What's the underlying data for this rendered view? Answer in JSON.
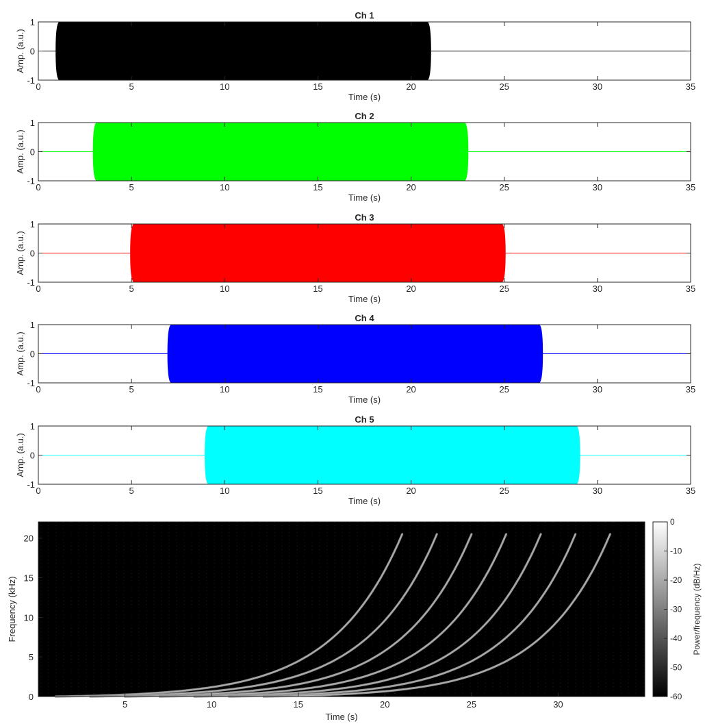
{
  "chart_data": [
    {
      "type": "line",
      "title": "Ch 1",
      "xlabel": "Time (s)",
      "ylabel": "Amp. (a.u.)",
      "xlim": [
        0,
        35
      ],
      "ylim": [
        -1,
        1
      ],
      "xticks": [
        "0",
        "5",
        "10",
        "15",
        "20",
        "25",
        "30",
        "35"
      ],
      "yticks": [
        "-1",
        "0",
        "1"
      ],
      "color": "#000000",
      "signal_start": 1,
      "signal_end": 21,
      "amplitude": 1
    },
    {
      "type": "line",
      "title": "Ch 2",
      "xlabel": "Time (s)",
      "ylabel": "Amp. (a.u.)",
      "xlim": [
        0,
        35
      ],
      "ylim": [
        -1,
        1
      ],
      "xticks": [
        "0",
        "5",
        "10",
        "15",
        "20",
        "25",
        "30",
        "35"
      ],
      "yticks": [
        "-1",
        "0",
        "1"
      ],
      "color": "#00ff00",
      "signal_start": 3,
      "signal_end": 23,
      "amplitude": 1
    },
    {
      "type": "line",
      "title": "Ch 3",
      "xlabel": "Time (s)",
      "ylabel": "Amp. (a.u.)",
      "xlim": [
        0,
        35
      ],
      "ylim": [
        -1,
        1
      ],
      "xticks": [
        "0",
        "5",
        "10",
        "15",
        "20",
        "25",
        "30",
        "35"
      ],
      "yticks": [
        "-1",
        "0",
        "1"
      ],
      "color": "#ff0000",
      "signal_start": 5,
      "signal_end": 25,
      "amplitude": 1
    },
    {
      "type": "line",
      "title": "Ch 4",
      "xlabel": "Time (s)",
      "ylabel": "Amp. (a.u.)",
      "xlim": [
        0,
        35
      ],
      "ylim": [
        -1,
        1
      ],
      "xticks": [
        "0",
        "5",
        "10",
        "15",
        "20",
        "25",
        "30",
        "35"
      ],
      "yticks": [
        "-1",
        "0",
        "1"
      ],
      "color": "#0000ff",
      "signal_start": 7,
      "signal_end": 27,
      "amplitude": 1
    },
    {
      "type": "line",
      "title": "Ch 5",
      "xlabel": "Time (s)",
      "ylabel": "Amp. (a.u.)",
      "xlim": [
        0,
        35
      ],
      "ylim": [
        -1,
        1
      ],
      "xticks": [
        "0",
        "5",
        "10",
        "15",
        "20",
        "25",
        "30",
        "35"
      ],
      "yticks": [
        "-1",
        "0",
        "1"
      ],
      "color": "#00ffff",
      "signal_start": 9,
      "signal_end": 29,
      "amplitude": 1
    },
    {
      "type": "heatmap",
      "title": "",
      "xlabel": "Time (s)",
      "ylabel": "Frequency (kHz)",
      "xlim": [
        0,
        35
      ],
      "ylim": [
        0,
        22.05
      ],
      "xticks": [
        "5",
        "10",
        "15",
        "20",
        "25",
        "30"
      ],
      "yticks": [
        "0",
        "5",
        "10",
        "15",
        "20"
      ],
      "background_color": "#000000",
      "colormap": "gray",
      "colorbar": {
        "label": "Power/frequency (dB/Hz)",
        "range": [
          -60,
          0
        ],
        "ticks": [
          "0",
          "-10",
          "-20",
          "-30",
          "-40",
          "-50",
          "-60"
        ]
      },
      "sweeps": [
        {
          "start_s": 1,
          "end_s": 21,
          "start_khz": 0,
          "end_khz": 20.5
        },
        {
          "start_s": 3,
          "end_s": 23,
          "start_khz": 0,
          "end_khz": 20.5
        },
        {
          "start_s": 5,
          "end_s": 25,
          "start_khz": 0,
          "end_khz": 20.5
        },
        {
          "start_s": 7,
          "end_s": 27,
          "start_khz": 0,
          "end_khz": 20.5
        },
        {
          "start_s": 9,
          "end_s": 29,
          "start_khz": 0,
          "end_khz": 20.5
        },
        {
          "start_s": 11,
          "end_s": 31,
          "start_khz": 0,
          "end_khz": 20.5
        },
        {
          "start_s": 13,
          "end_s": 33,
          "start_khz": 0,
          "end_khz": 20.5
        }
      ]
    }
  ]
}
